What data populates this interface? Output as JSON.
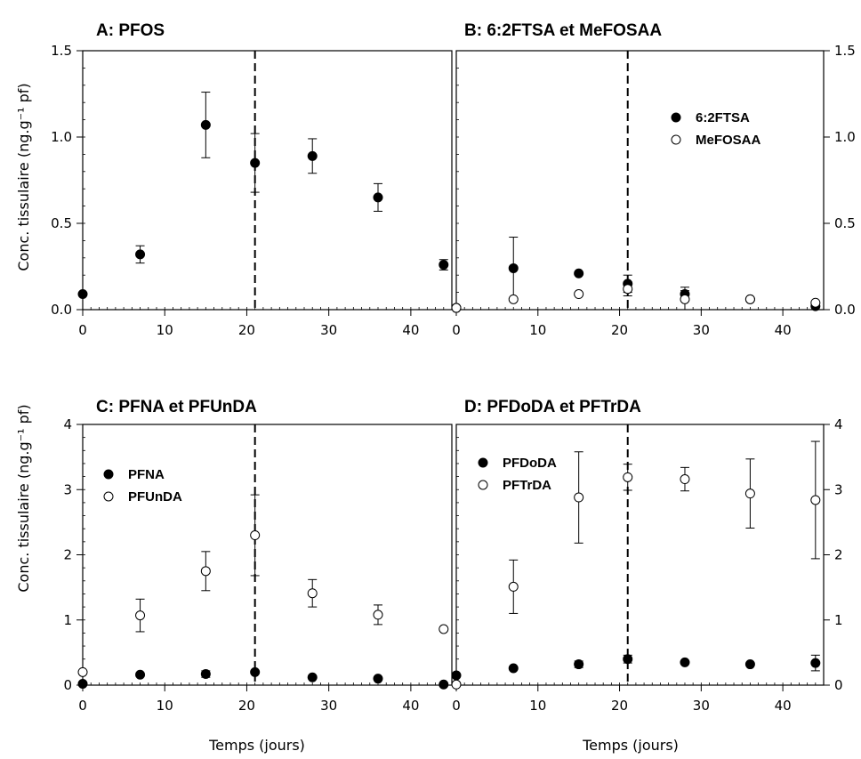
{
  "figure": {
    "ylabel": "Conc. tissulaire (ng.g⁻¹ pf)",
    "xlabel": "Temps (jours)"
  },
  "chart_data": [
    {
      "type": "scatter",
      "title": "A: PFOS",
      "xlim": [
        0,
        45
      ],
      "ylim": [
        0,
        1.5
      ],
      "xticks": [
        0,
        10,
        20,
        30,
        40
      ],
      "yticks": [
        "0.0",
        "0.5",
        "1.0",
        "1.5"
      ],
      "ytick_side": "left",
      "marker_line_x": 21,
      "legend": "none",
      "series": [
        {
          "marker": "filled",
          "points": [
            {
              "x": 0,
              "y": 0.09
            },
            {
              "x": 7,
              "y": 0.32,
              "err": 0.05
            },
            {
              "x": 15,
              "y": 1.07,
              "err": 0.19
            },
            {
              "x": 21,
              "y": 0.85,
              "err": 0.17
            },
            {
              "x": 28,
              "y": 0.89,
              "err": 0.1
            },
            {
              "x": 36,
              "y": 0.65,
              "err": 0.08
            },
            {
              "x": 44,
              "y": 0.26,
              "err": 0.03
            }
          ]
        }
      ]
    },
    {
      "type": "scatter",
      "title": "B: 6:2FTSA et MeFOSAA",
      "xlim": [
        0,
        45
      ],
      "ylim": [
        0,
        1.5
      ],
      "xticks": [
        0,
        10,
        20,
        30,
        40
      ],
      "yticks": [
        "0.0",
        "0.5",
        "1.0",
        "1.5"
      ],
      "ytick_side": "right",
      "marker_line_x": 21,
      "legend": "top-right",
      "series": [
        {
          "name": "6:2FTSA",
          "marker": "filled",
          "points": [
            {
              "x": 0,
              "y": 0.01
            },
            {
              "x": 7,
              "y": 0.24,
              "err": 0.18
            },
            {
              "x": 15,
              "y": 0.21
            },
            {
              "x": 21,
              "y": 0.15,
              "err": 0.05
            },
            {
              "x": 28,
              "y": 0.09,
              "err": 0.02
            },
            {
              "x": 36,
              "y": 0.06
            },
            {
              "x": 44,
              "y": 0.02
            }
          ]
        },
        {
          "name": "MeFOSAA",
          "marker": "open",
          "points": [
            {
              "x": 0,
              "y": 0.01
            },
            {
              "x": 7,
              "y": 0.06
            },
            {
              "x": 15,
              "y": 0.09
            },
            {
              "x": 21,
              "y": 0.12,
              "err": 0.04
            },
            {
              "x": 28,
              "y": 0.06,
              "err": 0.07
            },
            {
              "x": 36,
              "y": 0.06
            },
            {
              "x": 44,
              "y": 0.04
            }
          ]
        }
      ]
    },
    {
      "type": "scatter",
      "title": "C: PFNA et PFUnDA",
      "xlim": [
        0,
        45
      ],
      "ylim": [
        0,
        4
      ],
      "xticks": [
        0,
        10,
        20,
        30,
        40
      ],
      "yticks": [
        "0",
        "1",
        "2",
        "3",
        "4"
      ],
      "ytick_side": "left",
      "marker_line_x": 21,
      "legend": "top-left",
      "series": [
        {
          "name": "PFNA",
          "marker": "filled",
          "points": [
            {
              "x": 0,
              "y": 0.02
            },
            {
              "x": 7,
              "y": 0.16
            },
            {
              "x": 15,
              "y": 0.17,
              "err": 0.05
            },
            {
              "x": 21,
              "y": 0.2
            },
            {
              "x": 28,
              "y": 0.12
            },
            {
              "x": 36,
              "y": 0.1
            },
            {
              "x": 44,
              "y": 0.01
            }
          ]
        },
        {
          "name": "PFUnDA",
          "marker": "open",
          "points": [
            {
              "x": 0,
              "y": 0.2
            },
            {
              "x": 7,
              "y": 1.07,
              "err": 0.25
            },
            {
              "x": 15,
              "y": 1.75,
              "err": 0.3
            },
            {
              "x": 21,
              "y": 2.3,
              "err": 0.62
            },
            {
              "x": 28,
              "y": 1.41,
              "err": 0.21
            },
            {
              "x": 36,
              "y": 1.08,
              "err": 0.15
            },
            {
              "x": 44,
              "y": 0.86
            }
          ]
        }
      ]
    },
    {
      "type": "scatter",
      "title": "D: PFDoDA et PFTrDA",
      "xlim": [
        0,
        45
      ],
      "ylim": [
        0,
        4
      ],
      "xticks": [
        0,
        10,
        20,
        30,
        40
      ],
      "yticks": [
        "0",
        "1",
        "2",
        "3",
        "4"
      ],
      "ytick_side": "right",
      "marker_line_x": 21,
      "legend": "top-left",
      "series": [
        {
          "name": "PFDoDA",
          "marker": "filled",
          "points": [
            {
              "x": 0,
              "y": 0.15
            },
            {
              "x": 7,
              "y": 0.26
            },
            {
              "x": 15,
              "y": 0.32,
              "err": 0.05
            },
            {
              "x": 21,
              "y": 0.4,
              "err": 0.06
            },
            {
              "x": 28,
              "y": 0.35
            },
            {
              "x": 36,
              "y": 0.32
            },
            {
              "x": 44,
              "y": 0.34,
              "err": 0.12
            }
          ]
        },
        {
          "name": "PFTrDA",
          "marker": "open",
          "points": [
            {
              "x": 0,
              "y": 0.01
            },
            {
              "x": 7,
              "y": 1.51,
              "err": 0.41
            },
            {
              "x": 15,
              "y": 2.88,
              "err": 0.7
            },
            {
              "x": 21,
              "y": 3.19,
              "err": 0.2
            },
            {
              "x": 28,
              "y": 3.16,
              "err": 0.18
            },
            {
              "x": 36,
              "y": 2.94,
              "err": 0.53
            },
            {
              "x": 44,
              "y": 2.84,
              "err": 0.9
            }
          ]
        }
      ]
    }
  ]
}
